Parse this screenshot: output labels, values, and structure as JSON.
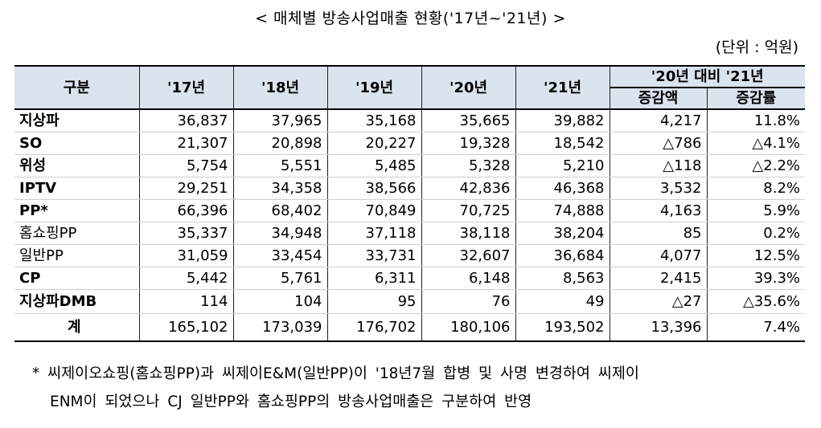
{
  "title": "< 매체별 방송사업매출 현황('17년~'21년) >",
  "unit": "(단위 : 억원)",
  "table": {
    "header_group": "구분",
    "years": [
      "'17년",
      "'18년",
      "'19년",
      "'20년",
      "'21년"
    ],
    "comparison_header": "'20년 대비 '21년",
    "comparison_sub": [
      "증감액",
      "증감률"
    ],
    "rows": [
      {
        "label": "지상파",
        "values": [
          "36,837",
          "37,965",
          "35,168",
          "35,665",
          "39,882"
        ],
        "change": "4,217",
        "rate": "11.8%"
      },
      {
        "label": "SO",
        "values": [
          "21,307",
          "20,898",
          "20,227",
          "19,328",
          "18,542"
        ],
        "change": "△786",
        "rate": "△4.1%"
      },
      {
        "label": "위성",
        "values": [
          "5,754",
          "5,551",
          "5,485",
          "5,328",
          "5,210"
        ],
        "change": "△118",
        "rate": "△2.2%"
      },
      {
        "label": "IPTV",
        "values": [
          "29,251",
          "34,358",
          "38,566",
          "42,836",
          "46,368"
        ],
        "change": "3,532",
        "rate": "8.2%"
      },
      {
        "label": "PP*",
        "values": [
          "66,396",
          "68,402",
          "70,849",
          "70,725",
          "74,888"
        ],
        "change": "4,163",
        "rate": "5.9%"
      },
      {
        "label": "홈쇼핑PP",
        "values": [
          "35,337",
          "34,948",
          "37,118",
          "38,118",
          "38,204"
        ],
        "change": "85",
        "rate": "0.2%"
      },
      {
        "label": "일반PP",
        "values": [
          "31,059",
          "33,454",
          "33,731",
          "32,607",
          "36,684"
        ],
        "change": "4,077",
        "rate": "12.5%"
      },
      {
        "label": "CP",
        "values": [
          "5,442",
          "5,761",
          "6,311",
          "6,148",
          "8,563"
        ],
        "change": "2,415",
        "rate": "39.3%"
      },
      {
        "label": "지상파DMB",
        "values": [
          "114",
          "104",
          "95",
          "76",
          "49"
        ],
        "change": "△27",
        "rate": "△35.6%"
      }
    ],
    "total": {
      "label": "계",
      "values": [
        "165,102",
        "173,039",
        "176,702",
        "180,106",
        "193,502"
      ],
      "change": "13,396",
      "rate": "7.4%"
    }
  },
  "note_line1": "* 씨제이오쇼핑(홈쇼핑PP)과 씨제이E&M(일반PP)이 '18년7월 합병 및 사명 변경하여 씨제이",
  "note_line2": "ENM이 되었으나 CJ 일반PP와 홈쇼핑PP의 방송사업매출은 구분하여 반영"
}
